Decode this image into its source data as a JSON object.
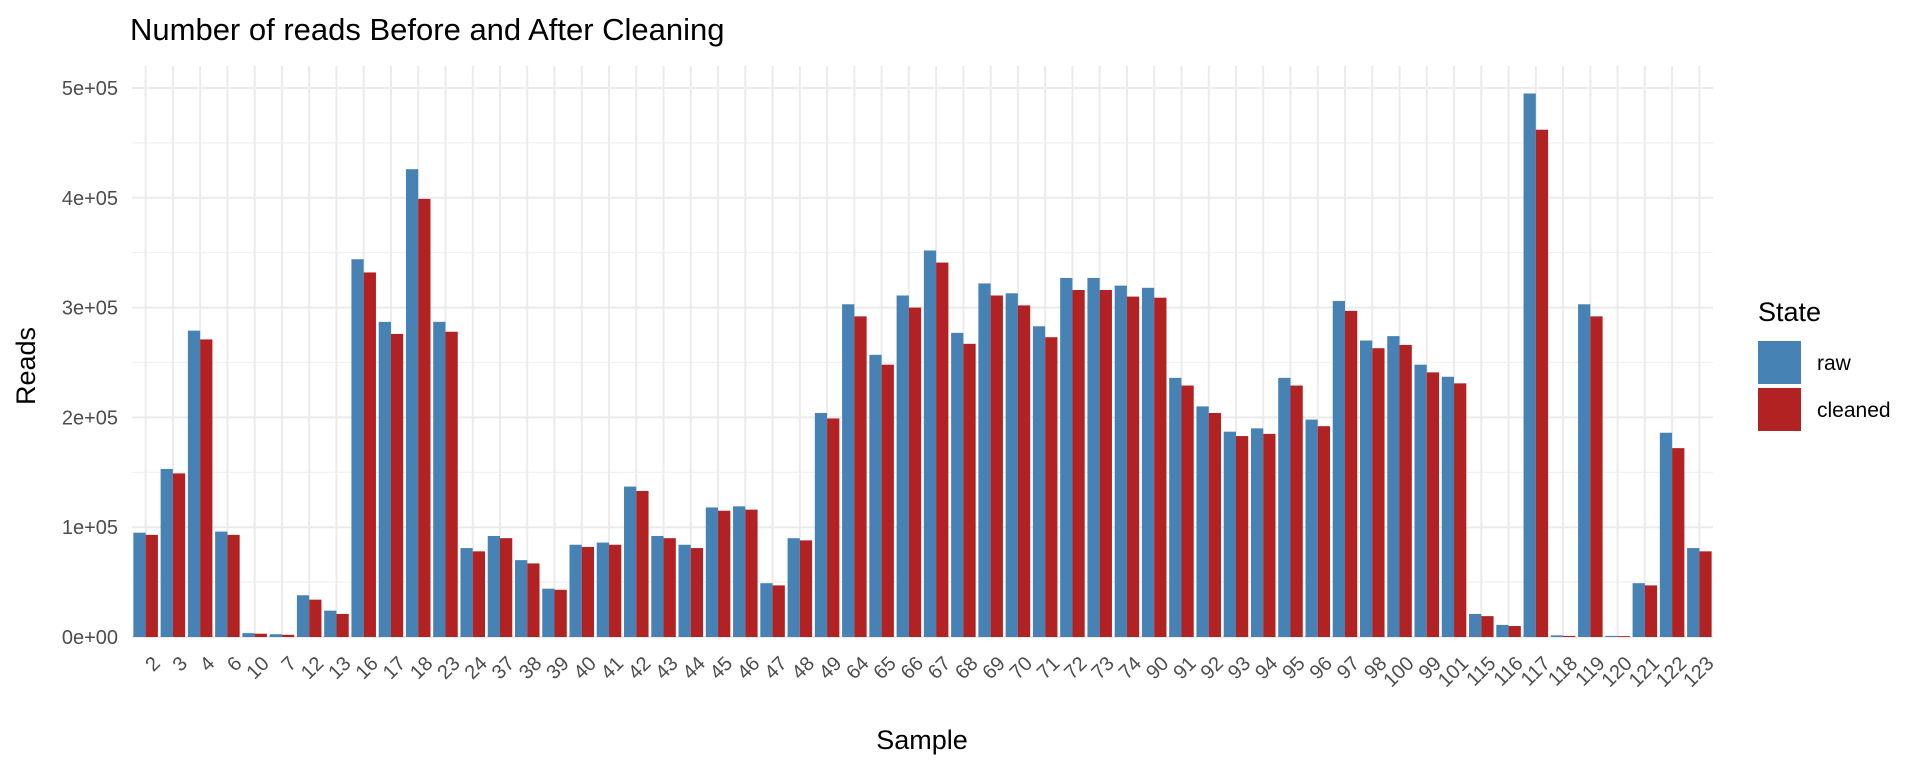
{
  "chart_data": {
    "type": "bar",
    "title": "Number of reads Before and After Cleaning",
    "xlabel": "Sample",
    "ylabel": "Reads",
    "ylim": [
      0,
      520000
    ],
    "yticks": [
      0,
      100000,
      200000,
      300000,
      400000,
      500000
    ],
    "ytick_labels": [
      "0e+00",
      "1e+05",
      "2e+05",
      "3e+05",
      "4e+05",
      "5e+05"
    ],
    "grid": true,
    "legend_position": "right",
    "legend_title": "State",
    "categories": [
      "2",
      "3",
      "4",
      "6",
      "10",
      "7",
      "12",
      "13",
      "16",
      "17",
      "18",
      "23",
      "24",
      "37",
      "38",
      "39",
      "40",
      "41",
      "42",
      "43",
      "44",
      "45",
      "46",
      "47",
      "48",
      "49",
      "64",
      "65",
      "66",
      "67",
      "68",
      "69",
      "70",
      "71",
      "72",
      "73",
      "74",
      "90",
      "91",
      "92",
      "93",
      "94",
      "95",
      "96",
      "97",
      "98",
      "100",
      "99",
      "101",
      "115",
      "116",
      "117",
      "118",
      "119",
      "120",
      "121",
      "122",
      "123"
    ],
    "series": [
      {
        "name": "raw",
        "color": "#4682b4",
        "values": [
          95000,
          153000,
          279000,
          96000,
          3500,
          2500,
          38000,
          24000,
          344000,
          287000,
          426000,
          287000,
          81000,
          92000,
          70000,
          44000,
          84000,
          86000,
          137000,
          92000,
          84000,
          118000,
          119000,
          49000,
          90000,
          204000,
          303000,
          257000,
          311000,
          352000,
          277000,
          322000,
          313000,
          283000,
          327000,
          327000,
          320000,
          318000,
          236000,
          210000,
          187000,
          190000,
          236000,
          198000,
          306000,
          270000,
          274000,
          248000,
          237000,
          21000,
          11000,
          495000,
          1500,
          303000,
          1000,
          49000,
          186000,
          81000
        ]
      },
      {
        "name": "cleaned",
        "color": "#b22222",
        "values": [
          93000,
          149000,
          271000,
          93000,
          3000,
          2000,
          34000,
          21000,
          332000,
          276000,
          399000,
          278000,
          78000,
          90000,
          67000,
          43000,
          82000,
          84000,
          133000,
          90000,
          81000,
          115000,
          116000,
          47000,
          88000,
          199000,
          292000,
          248000,
          300000,
          341000,
          267000,
          311000,
          302000,
          273000,
          316000,
          316000,
          310000,
          309000,
          229000,
          204000,
          183000,
          185000,
          229000,
          192000,
          297000,
          263000,
          266000,
          241000,
          231000,
          19000,
          10000,
          462000,
          1000,
          292000,
          800,
          47000,
          172000,
          78000
        ]
      }
    ]
  }
}
